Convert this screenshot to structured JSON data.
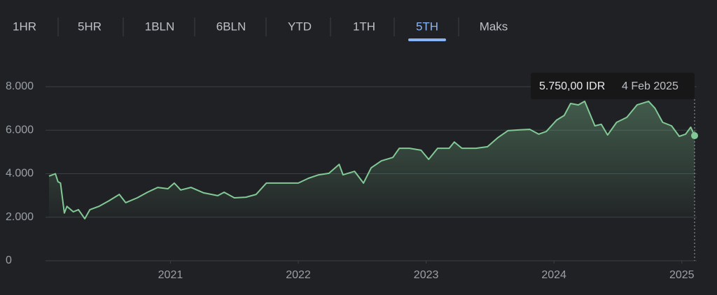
{
  "tabs": [
    "1HR",
    "5HR",
    "1BLN",
    "6BLN",
    "YTD",
    "1TH",
    "5TH",
    "Maks"
  ],
  "selected": 6,
  "chart_data": {
    "type": "line",
    "color": "#81c995",
    "x": [
      2020.05,
      2020.1,
      2020.12,
      2020.14,
      2020.17,
      2020.19,
      2020.24,
      2020.28,
      2020.33,
      2020.37,
      2020.44,
      2020.52,
      2020.6,
      2020.65,
      2020.74,
      2020.82,
      2020.9,
      2020.98,
      2021.03,
      2021.08,
      2021.16,
      2021.26,
      2021.37,
      2021.42,
      2021.5,
      2021.59,
      2021.67,
      2021.75,
      2021.83,
      2021.92,
      2022.0,
      2022.08,
      2022.16,
      2022.24,
      2022.32,
      2022.35,
      2022.44,
      2022.51,
      2022.57,
      2022.65,
      2022.74,
      2022.79,
      2022.87,
      2022.96,
      2023.02,
      2023.09,
      2023.18,
      2023.22,
      2023.28,
      2023.39,
      2023.48,
      2023.56,
      2023.64,
      2023.72,
      2023.81,
      2023.88,
      2023.94,
      2024.02,
      2024.08,
      2024.13,
      2024.19,
      2024.24,
      2024.32,
      2024.37,
      2024.42,
      2024.49,
      2024.57,
      2024.65,
      2024.74,
      2024.79,
      2024.85,
      2024.92,
      2024.98,
      2025.03,
      2025.07,
      2025.1
    ],
    "values": [
      3890,
      4000,
      3630,
      3570,
      2190,
      2500,
      2250,
      2350,
      1930,
      2350,
      2500,
      2760,
      3050,
      2670,
      2890,
      3150,
      3370,
      3310,
      3570,
      3250,
      3370,
      3120,
      2990,
      3150,
      2890,
      2920,
      3050,
      3570,
      3570,
      3570,
      3570,
      3790,
      3950,
      4020,
      4430,
      3950,
      4110,
      3570,
      4270,
      4590,
      4750,
      5170,
      5170,
      5080,
      4660,
      5170,
      5170,
      5460,
      5170,
      5170,
      5240,
      5650,
      5980,
      6010,
      6040,
      5820,
      5940,
      6460,
      6680,
      7230,
      7160,
      7330,
      6200,
      6270,
      5780,
      6360,
      6590,
      7160,
      7330,
      7010,
      6360,
      6200,
      5720,
      5820,
      6140,
      5750
    ],
    "xlim": [
      2020.05,
      2025.1
    ],
    "xticks": [
      2021,
      2022,
      2023,
      2024,
      2025
    ],
    "ylim": [
      0,
      8000
    ],
    "yticks": [
      0,
      {
        "value": 2000,
        "label": "2.000"
      },
      {
        "value": 4000,
        "label": "4.000"
      },
      {
        "value": 6000,
        "label": "6.000"
      },
      {
        "value": 8000,
        "label": "8.000"
      }
    ],
    "grid": true,
    "tooltip": {
      "value": "5.750,00 IDR",
      "date": "4 Feb 2025"
    }
  }
}
